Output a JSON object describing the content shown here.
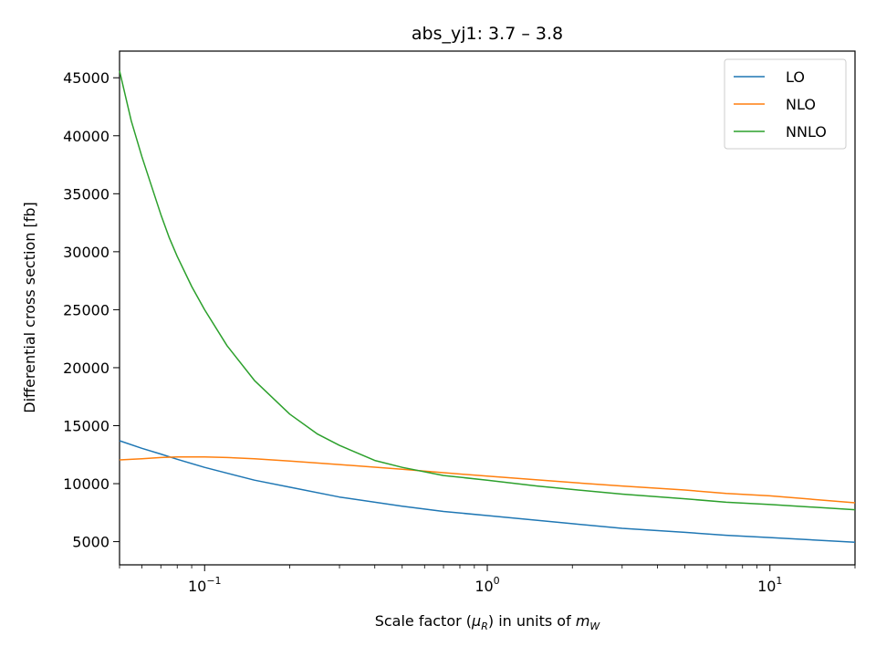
{
  "chart_data": {
    "type": "line",
    "title": "abs_yj1: 3.7 – 3.8",
    "xlabel_prefix": "Scale factor (",
    "xlabel_mu": "μ",
    "xlabel_mu_sub": "R",
    "xlabel_mid": ") in units of ",
    "xlabel_m": "m",
    "xlabel_m_sub": "W",
    "ylabel": "Differential cross section [fb]",
    "xscale": "log",
    "xlim": [
      0.05,
      20
    ],
    "ylim": [
      3000,
      47300
    ],
    "xticks": [
      {
        "value": 0.1,
        "base": "10",
        "exp": "−1"
      },
      {
        "value": 1,
        "base": "10",
        "exp": "0"
      },
      {
        "value": 10,
        "base": "10",
        "exp": "1"
      }
    ],
    "yticks": [
      5000,
      10000,
      15000,
      20000,
      25000,
      30000,
      35000,
      40000,
      45000
    ],
    "grid": false,
    "legend_position": "top-right",
    "series": [
      {
        "name": "LO",
        "color": "#1f77b4",
        "x": [
          0.05,
          0.06,
          0.07,
          0.08,
          0.1,
          0.15,
          0.2,
          0.3,
          0.5,
          0.7,
          1,
          2,
          3,
          5,
          7,
          10,
          20
        ],
        "y": [
          13700,
          13050,
          12550,
          12100,
          11400,
          10300,
          9700,
          8850,
          8050,
          7600,
          7250,
          6550,
          6150,
          5800,
          5550,
          5350,
          4950
        ]
      },
      {
        "name": "NLO",
        "color": "#ff7f0e",
        "x": [
          0.05,
          0.06,
          0.07,
          0.08,
          0.1,
          0.12,
          0.15,
          0.2,
          0.3,
          0.5,
          0.7,
          1,
          2,
          3,
          5,
          7,
          10,
          20
        ],
        "y": [
          12050,
          12150,
          12250,
          12300,
          12300,
          12250,
          12150,
          11950,
          11650,
          11250,
          10950,
          10650,
          10100,
          9800,
          9450,
          9150,
          8950,
          8350
        ]
      },
      {
        "name": "NNLO",
        "color": "#2ca02c",
        "x": [
          0.05,
          0.055,
          0.06,
          0.065,
          0.07,
          0.075,
          0.08,
          0.09,
          0.1,
          0.12,
          0.15,
          0.2,
          0.25,
          0.3,
          0.4,
          0.5,
          0.7,
          1,
          1.5,
          2,
          3,
          5,
          7,
          10,
          20
        ],
        "y": [
          45600,
          41300,
          38200,
          35600,
          33200,
          31200,
          29600,
          27000,
          25000,
          21900,
          18900,
          16000,
          14300,
          13300,
          12000,
          11400,
          10700,
          10300,
          9800,
          9500,
          9100,
          8700,
          8400,
          8200,
          7750
        ]
      }
    ]
  }
}
